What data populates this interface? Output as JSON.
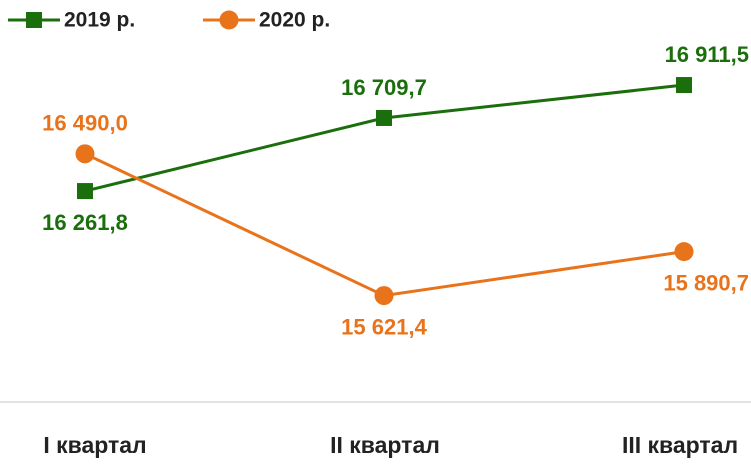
{
  "chart_data": {
    "type": "line",
    "categories": [
      "I квартал",
      "II квартал",
      "III квартал"
    ],
    "series": [
      {
        "name": "2019 р.",
        "color": "#1b6e0c",
        "marker": "square",
        "values": [
          16261.8,
          16709.7,
          16911.5
        ],
        "value_labels": [
          "16 261,8",
          "16 709,7",
          "16 911,5"
        ]
      },
      {
        "name": "2020 р.",
        "color": "#e8731b",
        "marker": "circle",
        "values": [
          16490.0,
          15621.4,
          15890.7
        ],
        "value_labels": [
          "16 490,0",
          "15 621,4",
          "15 890,7"
        ]
      }
    ],
    "ylim": [
      15000,
      17500
    ],
    "legend": "top-left"
  }
}
